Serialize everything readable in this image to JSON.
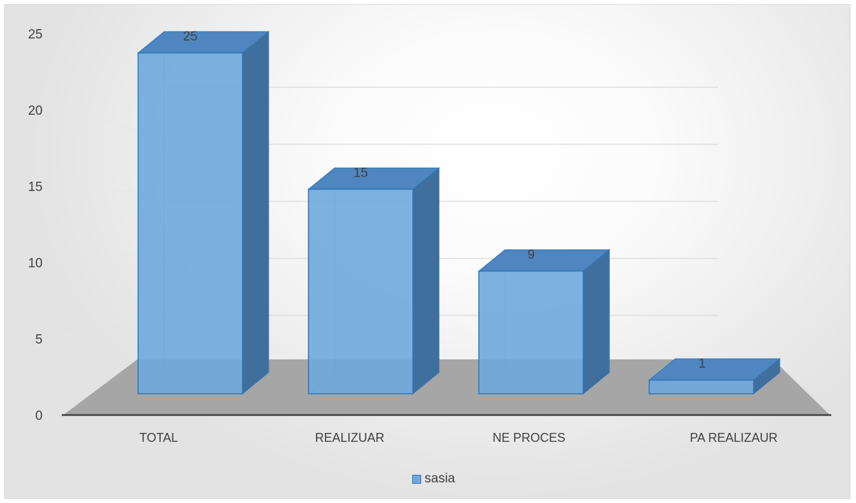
{
  "chart_data": {
    "type": "bar",
    "title": "",
    "xlabel": "",
    "ylabel": "",
    "categories": [
      "TOTAL",
      "REALIZUAR",
      "NE PROCES",
      "PA REALIZAUR"
    ],
    "series": [
      {
        "name": "sasia",
        "values": [
          25,
          15,
          9,
          1
        ]
      }
    ],
    "data_labels": [
      "25",
      "15",
      "9",
      "1"
    ],
    "y_ticks": [
      "0",
      "5",
      "10",
      "15",
      "20",
      "25"
    ],
    "ylim": [
      0,
      25
    ],
    "grid": true,
    "legend_position": "bottom",
    "style": "3d-column",
    "colors": {
      "bar_front": "#6fa8dc",
      "bar_side": "#3f6f9d",
      "bar_top": "#4f86bf",
      "bar_edge": "#2e75b6",
      "floor": "#a6a6a6",
      "axis": "#404040"
    }
  }
}
